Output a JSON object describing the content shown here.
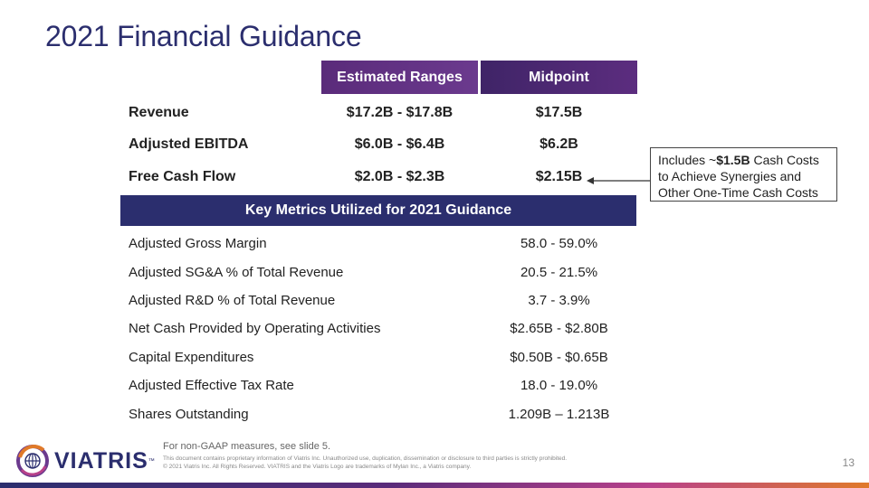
{
  "title": "2021 Financial Guidance",
  "table": {
    "col_range": "Estimated Ranges",
    "col_mid": "Midpoint",
    "rows": [
      {
        "label": "Revenue",
        "range": "$17.2B - $17.8B",
        "mid": "$17.5B"
      },
      {
        "label": "Adjusted EBITDA",
        "range": "$6.0B - $6.4B",
        "mid": "$6.2B"
      },
      {
        "label": "Free Cash Flow",
        "range": "$2.0B - $2.3B",
        "mid": "$2.15B"
      }
    ]
  },
  "callout": {
    "prefix": "Includes ~",
    "bold": "$1.5B",
    "suffix": " Cash Costs to Achieve Synergies and Other One-Time Cash Costs"
  },
  "metrics": {
    "heading": "Key Metrics Utilized for 2021 Guidance",
    "rows": [
      {
        "label": "Adjusted Gross Margin",
        "value": "58.0 - 59.0%"
      },
      {
        "label": "Adjusted SG&A % of Total Revenue",
        "value": "20.5 - 21.5%"
      },
      {
        "label": "Adjusted R&D % of Total Revenue",
        "value": "3.7 - 3.9%"
      },
      {
        "label": "Net Cash Provided by Operating Activities",
        "value": "$2.65B - $2.80B"
      },
      {
        "label": "Capital Expenditures",
        "value": "$0.50B - $0.65B"
      },
      {
        "label": "Adjusted Effective Tax Rate",
        "value": "18.0 - 19.0%"
      },
      {
        "label": "Shares Outstanding",
        "value": "1.209B – 1.213B"
      }
    ]
  },
  "footer": {
    "logo_text": "VIATRIS",
    "logo_tm": "™",
    "note": "For non-GAAP measures, see slide 5.",
    "legal_1": "This document contains proprietary information of Viatris Inc. Unauthorized use, duplication, dissemination or disclosure to third parties is strictly prohibited.",
    "legal_2": "© 2021 Viatris Inc. All Rights Reserved. VIATRIS and the Viatris Logo are trademarks of Mylan Inc., a Viatris company.",
    "slide_number": "13"
  },
  "colors": {
    "navy": "#2b2e6e",
    "purple": "#5a2b7a"
  }
}
